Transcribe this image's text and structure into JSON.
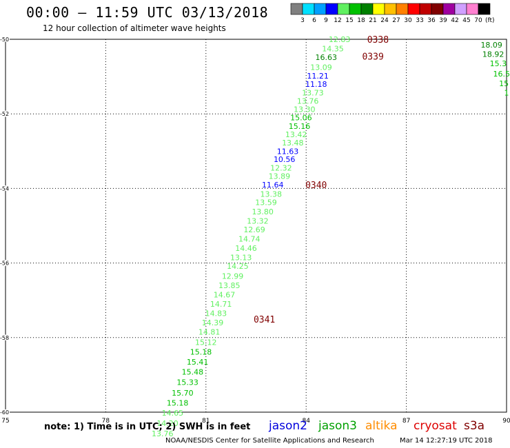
{
  "title": "00:00 – 11:59 UTC 03/13/2018",
  "subtitle": "12 hour collection of altimeter wave heights",
  "note": "note: 1) Time is in UTC; 2) SWH is in feet",
  "credit": "NOAA/NESDIS Center for Satellite Applications and Research",
  "timestamp": "Mar 14 12:27:19 UTC 2018",
  "colorbar": {
    "unit": "(ft)",
    "colors": [
      "#808080",
      "#00e0ff",
      "#00a0ff",
      "#0000ff",
      "#60f060",
      "#00c000",
      "#008000",
      "#ffff00",
      "#ffc000",
      "#ff8000",
      "#ff0000",
      "#c00000",
      "#800000",
      "#a000a0",
      "#d0a0ff",
      "#ff80d0",
      "#000000"
    ],
    "labels": [
      "3",
      "6",
      "9",
      "12",
      "15",
      "18",
      "21",
      "24",
      "27",
      "30",
      "33",
      "36",
      "39",
      "42",
      "45",
      "70"
    ]
  },
  "missions": [
    {
      "name": "jason2",
      "color": "#0000dd"
    },
    {
      "name": "jason3",
      "color": "#00a000"
    },
    {
      "name": "altika",
      "color": "#ff8c00"
    },
    {
      "name": "cryosat",
      "color": "#dd0000"
    },
    {
      "name": "s3a",
      "color": "#800000"
    }
  ],
  "chart_data": {
    "type": "scatter",
    "xlim": [
      75,
      90
    ],
    "ylim": [
      -60,
      -50
    ],
    "xticks": [
      "75",
      "78",
      "81",
      "84",
      "87",
      "90"
    ],
    "yticks": [
      "-50",
      "-52",
      "-54",
      "-56",
      "-58",
      "-60"
    ],
    "grid": true,
    "points": [
      {
        "lon": 85.0,
        "lat": -50.0,
        "swh": "12.83",
        "color": "#60f060"
      },
      {
        "lon": 84.8,
        "lat": -50.25,
        "swh": "14.35",
        "color": "#60f060"
      },
      {
        "lon": 84.6,
        "lat": -50.48,
        "swh": "16.63",
        "color": "#008000"
      },
      {
        "lon": 84.45,
        "lat": -50.75,
        "swh": "13.09",
        "color": "#60f060"
      },
      {
        "lon": 84.35,
        "lat": -50.98,
        "swh": "11.21",
        "color": "#0000ff"
      },
      {
        "lon": 84.3,
        "lat": -51.2,
        "swh": "11.18",
        "color": "#0000ff"
      },
      {
        "lon": 84.2,
        "lat": -51.43,
        "swh": "13.73",
        "color": "#60f060"
      },
      {
        "lon": 84.05,
        "lat": -51.65,
        "swh": "13.76",
        "color": "#60f060"
      },
      {
        "lon": 83.95,
        "lat": -51.88,
        "swh": "13.30",
        "color": "#60f060"
      },
      {
        "lon": 83.85,
        "lat": -52.1,
        "swh": "15.06",
        "color": "#00c000"
      },
      {
        "lon": 83.8,
        "lat": -52.33,
        "swh": "15.16",
        "color": "#00c000"
      },
      {
        "lon": 83.7,
        "lat": -52.55,
        "swh": "13.42",
        "color": "#60f060"
      },
      {
        "lon": 83.6,
        "lat": -52.77,
        "swh": "13.48",
        "color": "#60f060"
      },
      {
        "lon": 83.45,
        "lat": -53.0,
        "swh": "11.63",
        "color": "#0000ff"
      },
      {
        "lon": 83.35,
        "lat": -53.22,
        "swh": "10.56",
        "color": "#0000ff"
      },
      {
        "lon": 83.25,
        "lat": -53.45,
        "swh": "12.32",
        "color": "#60f060"
      },
      {
        "lon": 83.2,
        "lat": -53.67,
        "swh": "13.89",
        "color": "#60f060"
      },
      {
        "lon": 83.0,
        "lat": -53.9,
        "swh": "11.64",
        "color": "#0000ff"
      },
      {
        "lon": 82.95,
        "lat": -54.15,
        "swh": "13.38",
        "color": "#60f060"
      },
      {
        "lon": 82.8,
        "lat": -54.37,
        "swh": "13.59",
        "color": "#60f060"
      },
      {
        "lon": 82.7,
        "lat": -54.62,
        "swh": "13.80",
        "color": "#60f060"
      },
      {
        "lon": 82.55,
        "lat": -54.87,
        "swh": "13.32",
        "color": "#60f060"
      },
      {
        "lon": 82.45,
        "lat": -55.1,
        "swh": "12.69",
        "color": "#60f060"
      },
      {
        "lon": 82.3,
        "lat": -55.35,
        "swh": "14.74",
        "color": "#60f060"
      },
      {
        "lon": 82.2,
        "lat": -55.6,
        "swh": "14.46",
        "color": "#60f060"
      },
      {
        "lon": 82.05,
        "lat": -55.85,
        "swh": "13.13",
        "color": "#60f060"
      },
      {
        "lon": 81.95,
        "lat": -56.08,
        "swh": "14.25",
        "color": "#60f060"
      },
      {
        "lon": 81.8,
        "lat": -56.35,
        "swh": "12.99",
        "color": "#60f060"
      },
      {
        "lon": 81.7,
        "lat": -56.6,
        "swh": "13.85",
        "color": "#60f060"
      },
      {
        "lon": 81.55,
        "lat": -56.85,
        "swh": "14.67",
        "color": "#60f060"
      },
      {
        "lon": 81.45,
        "lat": -57.1,
        "swh": "14.71",
        "color": "#60f060"
      },
      {
        "lon": 81.3,
        "lat": -57.35,
        "swh": "14.83",
        "color": "#60f060"
      },
      {
        "lon": 81.2,
        "lat": -57.6,
        "swh": "14.39",
        "color": "#60f060"
      },
      {
        "lon": 81.1,
        "lat": -57.85,
        "swh": "14.81",
        "color": "#60f060"
      },
      {
        "lon": 81.0,
        "lat": -58.12,
        "swh": "15.12",
        "color": "#60f060"
      },
      {
        "lon": 80.85,
        "lat": -58.38,
        "swh": "15.18",
        "color": "#00c000"
      },
      {
        "lon": 80.75,
        "lat": -58.65,
        "swh": "15.41",
        "color": "#00c000"
      },
      {
        "lon": 80.6,
        "lat": -58.92,
        "swh": "15.48",
        "color": "#00c000"
      },
      {
        "lon": 80.45,
        "lat": -59.2,
        "swh": "15.33",
        "color": "#00c000"
      },
      {
        "lon": 80.3,
        "lat": -59.48,
        "swh": "15.70",
        "color": "#00c000"
      },
      {
        "lon": 80.15,
        "lat": -59.75,
        "swh": "15.18",
        "color": "#00c000"
      },
      {
        "lon": 80.0,
        "lat": -60.02,
        "swh": "14.65",
        "color": "#60f060"
      },
      {
        "lon": 79.85,
        "lat": -60.3,
        "swh": "14.20",
        "color": "#60f060"
      },
      {
        "lon": 79.7,
        "lat": -60.57,
        "swh": "13.76",
        "color": "#60f060"
      },
      {
        "lon": 89.55,
        "lat": -50.15,
        "swh": "18.09",
        "color": "#008000"
      },
      {
        "lon": 89.6,
        "lat": -50.4,
        "swh": "18.92",
        "color": "#008000"
      },
      {
        "lon": 89.75,
        "lat": -50.65,
        "swh": "15.3",
        "color": "#00c000"
      },
      {
        "lon": 89.85,
        "lat": -50.92,
        "swh": "16.5",
        "color": "#00c000"
      },
      {
        "lon": 89.92,
        "lat": -51.18,
        "swh": "15",
        "color": "#00c000"
      },
      {
        "lon": 90.0,
        "lat": -51.43,
        "swh": "1",
        "color": "#00c000"
      }
    ],
    "time_labels": [
      {
        "lon": 86.15,
        "lat": -50.0,
        "text": "0338",
        "color": "#800000"
      },
      {
        "lon": 86.0,
        "lat": -50.45,
        "text": "0339",
        "color": "#800000"
      },
      {
        "lon": 84.3,
        "lat": -53.9,
        "text": "0340",
        "color": "#800000"
      },
      {
        "lon": 82.75,
        "lat": -57.5,
        "text": "0341",
        "color": "#800000"
      }
    ]
  }
}
